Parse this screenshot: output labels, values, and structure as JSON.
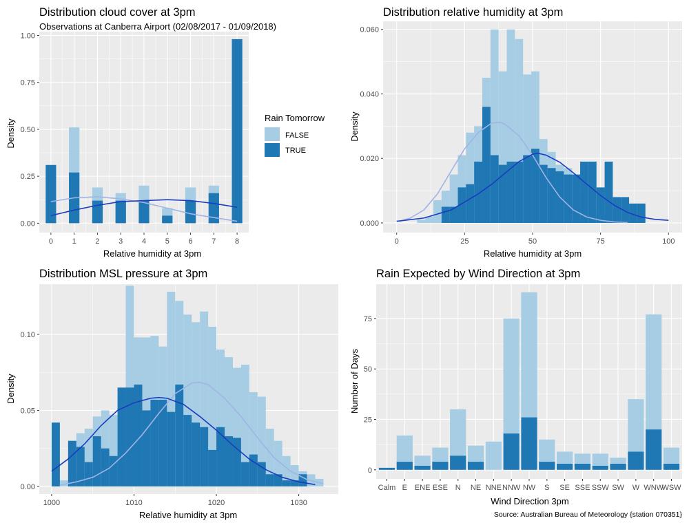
{
  "palette": {
    "panel_bg": "#ebebeb",
    "grid_major": "#ffffff",
    "false_fill": "#a6cde3",
    "true_fill": "#1f78b4",
    "false_line": "#a0b4e6",
    "true_line": "#1a3dbf",
    "title_color": "#000000",
    "tick_color": "#4d4d4d"
  },
  "legend": {
    "title": "Rain Tomorrow",
    "items": [
      {
        "label": "FALSE",
        "color": "#a6cde3"
      },
      {
        "label": "TRUE",
        "color": "#1f78b4"
      }
    ]
  },
  "source": "Source: Australian Bureau of Meteorology {station 070351}",
  "chart_data": [
    {
      "id": "cloud",
      "type": "bar",
      "title": "Distribution cloud cover at 3pm",
      "subtitle": "Observations at Canberra Airport (02/08/2017 - 01/09/2018)",
      "xlabel": "Relative humidity at 3pm",
      "ylabel": "Density",
      "xlim": [
        -0.5,
        8.5
      ],
      "ylim": [
        -0.05,
        1.02
      ],
      "xticks": [
        0,
        1,
        2,
        3,
        4,
        5,
        6,
        7,
        8
      ],
      "yticks": [
        0,
        0.25,
        0.5,
        0.75,
        1.0
      ],
      "ytick_labels": [
        "0.00",
        "0.25",
        "0.50",
        "0.75",
        "1.00"
      ],
      "bar_width": 0.45,
      "bars_false": [
        [
          1,
          0.51
        ],
        [
          2,
          0.19
        ],
        [
          3,
          0.16
        ],
        [
          4,
          0.2
        ],
        [
          5,
          0.08
        ],
        [
          6,
          0.19
        ],
        [
          7,
          0.2
        ]
      ],
      "bars_true": [
        [
          0,
          0.31
        ],
        [
          1,
          0.27
        ],
        [
          2,
          0.12
        ],
        [
          3,
          0.12
        ],
        [
          4,
          0.12
        ],
        [
          5,
          0.04
        ],
        [
          6,
          0.12
        ],
        [
          7,
          0.16
        ],
        [
          8,
          0.98
        ]
      ],
      "curve_false": [
        [
          0,
          0.115
        ],
        [
          1,
          0.135
        ],
        [
          2,
          0.14
        ],
        [
          3,
          0.13
        ],
        [
          4,
          0.11
        ],
        [
          5,
          0.08
        ],
        [
          6,
          0.05
        ],
        [
          7,
          0.03
        ],
        [
          8,
          0.01
        ]
      ],
      "curve_true": [
        [
          0,
          0.04
        ],
        [
          1,
          0.07
        ],
        [
          2,
          0.095
        ],
        [
          3,
          0.115
        ],
        [
          4,
          0.12
        ],
        [
          5,
          0.125
        ],
        [
          6,
          0.12
        ],
        [
          7,
          0.105
        ],
        [
          8,
          0.085
        ]
      ]
    },
    {
      "id": "humidity",
      "type": "bar",
      "title": "Distribution relative humidity at 3pm",
      "subtitle": "",
      "xlabel": "Relative humidity at 3pm",
      "ylabel": "Density",
      "xlim": [
        -5,
        105
      ],
      "ylim": [
        -0.003,
        0.0625
      ],
      "xticks": [
        0,
        25,
        50,
        75,
        100
      ],
      "yticks": [
        0,
        0.02,
        0.04,
        0.06
      ],
      "ytick_labels": [
        "0.000",
        "0.020",
        "0.040",
        "0.060"
      ],
      "bin_width": 3,
      "bars_false": [
        [
          9,
          0.001
        ],
        [
          12,
          0.002
        ],
        [
          15,
          0.007
        ],
        [
          18,
          0.01
        ],
        [
          21,
          0.015
        ],
        [
          24,
          0.021
        ],
        [
          27,
          0.028
        ],
        [
          30,
          0.03
        ],
        [
          33,
          0.045
        ],
        [
          36,
          0.06
        ],
        [
          39,
          0.047
        ],
        [
          42,
          0.06
        ],
        [
          45,
          0.057
        ],
        [
          48,
          0.046
        ],
        [
          51,
          0.047
        ],
        [
          54,
          0.026
        ],
        [
          57,
          0.022
        ],
        [
          60,
          0.018
        ],
        [
          63,
          0.017
        ],
        [
          66,
          0.015
        ],
        [
          69,
          0.011
        ],
        [
          72,
          0.008
        ],
        [
          75,
          0.004
        ],
        [
          78,
          0.002
        ]
      ],
      "bars_true": [
        [
          18,
          0.005
        ],
        [
          21,
          0.005
        ],
        [
          24,
          0.011
        ],
        [
          27,
          0.012
        ],
        [
          30,
          0.019
        ],
        [
          33,
          0.036
        ],
        [
          36,
          0.021
        ],
        [
          39,
          0.018
        ],
        [
          42,
          0.019
        ],
        [
          45,
          0.019
        ],
        [
          48,
          0.021
        ],
        [
          51,
          0.023
        ],
        [
          54,
          0.018
        ],
        [
          57,
          0.017
        ],
        [
          60,
          0.016
        ],
        [
          63,
          0.015
        ],
        [
          66,
          0.015
        ],
        [
          69,
          0.019
        ],
        [
          72,
          0.019
        ],
        [
          75,
          0.011
        ],
        [
          78,
          0.019
        ],
        [
          81,
          0.008
        ],
        [
          84,
          0.008
        ],
        [
          87,
          0.006
        ],
        [
          90,
          0.006
        ]
      ],
      "curve_false": [
        [
          1,
          0.0005
        ],
        [
          5,
          0.0015
        ],
        [
          10,
          0.004
        ],
        [
          15,
          0.009
        ],
        [
          20,
          0.016
        ],
        [
          25,
          0.023
        ],
        [
          30,
          0.028
        ],
        [
          35,
          0.031
        ],
        [
          38,
          0.0312
        ],
        [
          40,
          0.0305
        ],
        [
          45,
          0.027
        ],
        [
          50,
          0.021
        ],
        [
          55,
          0.014
        ],
        [
          60,
          0.008
        ],
        [
          65,
          0.004
        ],
        [
          70,
          0.0018
        ],
        [
          75,
          0.0008
        ],
        [
          80,
          0.0003
        ],
        [
          85,
          0.0001
        ]
      ],
      "curve_true": [
        [
          0,
          0.0005
        ],
        [
          10,
          0.0015
        ],
        [
          20,
          0.004
        ],
        [
          30,
          0.009
        ],
        [
          35,
          0.012
        ],
        [
          40,
          0.0155
        ],
        [
          45,
          0.019
        ],
        [
          50,
          0.0213
        ],
        [
          52,
          0.0216
        ],
        [
          55,
          0.021
        ],
        [
          60,
          0.0188
        ],
        [
          65,
          0.0155
        ],
        [
          70,
          0.012
        ],
        [
          75,
          0.0085
        ],
        [
          80,
          0.0055
        ],
        [
          85,
          0.0032
        ],
        [
          90,
          0.0018
        ],
        [
          95,
          0.0011
        ],
        [
          100,
          0.0008
        ]
      ]
    },
    {
      "id": "pressure",
      "type": "bar",
      "title": "Distribution MSL pressure at 3pm",
      "subtitle": "",
      "xlabel": "Relative humidity at 3pm",
      "ylabel": "Density",
      "xlim": [
        998.5,
        1034.8
      ],
      "ylim": [
        -0.005,
        0.133
      ],
      "xticks": [
        1000,
        1010,
        1020,
        1030
      ],
      "yticks": [
        0,
        0.05,
        0.1
      ],
      "ytick_labels": [
        "0.00",
        "0.05",
        "0.10"
      ],
      "bin_width": 1,
      "bars_false": [
        [
          1001.5,
          0.004
        ],
        [
          1002.5,
          0.008
        ],
        [
          1003.5,
          0.035
        ],
        [
          1004.5,
          0.038
        ],
        [
          1005.5,
          0.046
        ],
        [
          1006.5,
          0.05
        ],
        [
          1007.5,
          0.047
        ],
        [
          1008.5,
          0.058
        ],
        [
          1009.5,
          0.132
        ],
        [
          1010.5,
          0.098
        ],
        [
          1011.5,
          0.098
        ],
        [
          1012.5,
          0.099
        ],
        [
          1013.5,
          0.092
        ],
        [
          1014.5,
          0.128
        ],
        [
          1015.5,
          0.122
        ],
        [
          1016.5,
          0.113
        ],
        [
          1017.5,
          0.108
        ],
        [
          1018.5,
          0.115
        ],
        [
          1019.5,
          0.105
        ],
        [
          1020.5,
          0.09
        ],
        [
          1021.5,
          0.085
        ],
        [
          1022.5,
          0.078
        ],
        [
          1023.5,
          0.08
        ],
        [
          1024.5,
          0.062
        ],
        [
          1025.5,
          0.059
        ],
        [
          1026.5,
          0.038
        ],
        [
          1027.5,
          0.03
        ],
        [
          1028.5,
          0.02
        ],
        [
          1029.5,
          0.014
        ],
        [
          1030.5,
          0.01
        ],
        [
          1031.5,
          0.008
        ],
        [
          1032.5,
          0.005
        ]
      ],
      "bars_true": [
        [
          1000.5,
          0.042
        ],
        [
          1001.5,
          0.0
        ],
        [
          1002.5,
          0.03
        ],
        [
          1003.5,
          0.026
        ],
        [
          1004.5,
          0.016
        ],
        [
          1005.5,
          0.033
        ],
        [
          1006.5,
          0.025
        ],
        [
          1007.5,
          0.02
        ],
        [
          1008.5,
          0.065
        ],
        [
          1009.5,
          0.065
        ],
        [
          1010.5,
          0.067
        ],
        [
          1011.5,
          0.05
        ],
        [
          1012.5,
          0.057
        ],
        [
          1013.5,
          0.057
        ],
        [
          1014.5,
          0.049
        ],
        [
          1015.5,
          0.067
        ],
        [
          1016.5,
          0.047
        ],
        [
          1017.5,
          0.042
        ],
        [
          1018.5,
          0.039
        ],
        [
          1019.5,
          0.024
        ],
        [
          1020.5,
          0.039
        ],
        [
          1021.5,
          0.033
        ],
        [
          1022.5,
          0.032
        ],
        [
          1023.5,
          0.016
        ],
        [
          1024.5,
          0.021
        ],
        [
          1025.5,
          0.016
        ],
        [
          1026.5,
          0.008
        ],
        [
          1027.5,
          0.008
        ],
        [
          1028.5,
          0.004
        ],
        [
          1029.5,
          0.004
        ],
        [
          1030.5,
          0.008
        ],
        [
          1031.5,
          0.0
        ],
        [
          1032.5,
          0.0
        ]
      ],
      "curve_false": [
        [
          1001,
          0.0008
        ],
        [
          1003,
          0.003
        ],
        [
          1005,
          0.006
        ],
        [
          1007,
          0.012
        ],
        [
          1009,
          0.022
        ],
        [
          1011,
          0.034
        ],
        [
          1013,
          0.048
        ],
        [
          1015,
          0.061
        ],
        [
          1017,
          0.068
        ],
        [
          1018,
          0.0685
        ],
        [
          1019,
          0.067
        ],
        [
          1021,
          0.058
        ],
        [
          1023,
          0.046
        ],
        [
          1025,
          0.032
        ],
        [
          1027,
          0.019
        ],
        [
          1029,
          0.01
        ],
        [
          1031,
          0.0045
        ],
        [
          1033,
          0.0018
        ]
      ],
      "curve_true": [
        [
          1000,
          0.01
        ],
        [
          1002,
          0.018
        ],
        [
          1004,
          0.028
        ],
        [
          1006,
          0.04
        ],
        [
          1008,
          0.05
        ],
        [
          1010,
          0.055
        ],
        [
          1012,
          0.058
        ],
        [
          1013,
          0.0585
        ],
        [
          1014,
          0.058
        ],
        [
          1016,
          0.054
        ],
        [
          1018,
          0.046
        ],
        [
          1020,
          0.037
        ],
        [
          1022,
          0.027
        ],
        [
          1024,
          0.018
        ],
        [
          1026,
          0.011
        ],
        [
          1028,
          0.006
        ],
        [
          1030,
          0.003
        ],
        [
          1032,
          0.0012
        ]
      ]
    },
    {
      "id": "wind",
      "type": "bar",
      "title": "Rain Expected by Wind Direction at 3pm",
      "subtitle": "",
      "xlabel": "Wind Direction 3pm",
      "ylabel": "Number of Days",
      "ylim": [
        -4.5,
        92
      ],
      "yticks": [
        0,
        25,
        50,
        75
      ],
      "ytick_labels": [
        "0",
        "25",
        "50",
        "75"
      ],
      "categories": [
        "Calm",
        "E",
        "ENE",
        "ESE",
        "N",
        "NE",
        "NNE",
        "NNW",
        "NW",
        "S",
        "SE",
        "SSE",
        "SSW",
        "SW",
        "W",
        "WNW",
        "WSW"
      ],
      "category_labels": [
        "Calm",
        "E",
        "ENE",
        "ESE",
        "N",
        "NE",
        "NNE",
        "NNW",
        "NW",
        "S",
        "SE",
        "SSE",
        "SSW",
        "SW",
        "W",
        "WNW",
        "WSW"
      ],
      "totals": [
        1,
        17,
        7,
        11,
        30,
        12,
        14,
        75,
        88,
        15,
        9,
        8,
        8,
        6,
        35,
        77,
        11
      ],
      "true_counts": [
        1,
        4,
        2,
        4,
        7,
        4,
        0,
        18,
        26,
        4,
        3,
        3,
        2,
        3,
        9,
        20,
        3
      ],
      "bar_width": 0.9
    }
  ]
}
